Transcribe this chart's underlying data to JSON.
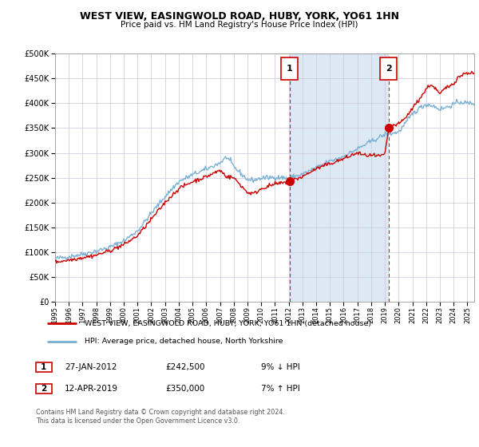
{
  "title": "WEST VIEW, EASINGWOLD ROAD, HUBY, YORK, YO61 1HN",
  "subtitle": "Price paid vs. HM Land Registry's House Price Index (HPI)",
  "legend_line1": "WEST VIEW, EASINGWOLD ROAD, HUBY, YORK, YO61 1HN (detached house)",
  "legend_line2": "HPI: Average price, detached house, North Yorkshire",
  "annotation1_label": "1",
  "annotation1_date": "27-JAN-2012",
  "annotation1_price": "£242,500",
  "annotation1_hpi": "9% ↓ HPI",
  "annotation2_label": "2",
  "annotation2_date": "12-APR-2019",
  "annotation2_price": "£350,000",
  "annotation2_hpi": "7% ↑ HPI",
  "footnote": "Contains HM Land Registry data © Crown copyright and database right 2024.\nThis data is licensed under the Open Government Licence v3.0.",
  "red_color": "#cc0000",
  "blue_color": "#7ab0d4",
  "blue_shade_color": "#dce9f5",
  "background_color": "#ffffff",
  "grid_color": "#c8c8d8",
  "ylim": [
    0,
    500000
  ],
  "yticks": [
    0,
    50000,
    100000,
    150000,
    200000,
    250000,
    300000,
    350000,
    400000,
    450000,
    500000
  ],
  "sale1_x": 2012.07,
  "sale1_y": 242500,
  "sale2_x": 2019.28,
  "sale2_y": 350000,
  "xmin": 1995.0,
  "xmax": 2025.5
}
